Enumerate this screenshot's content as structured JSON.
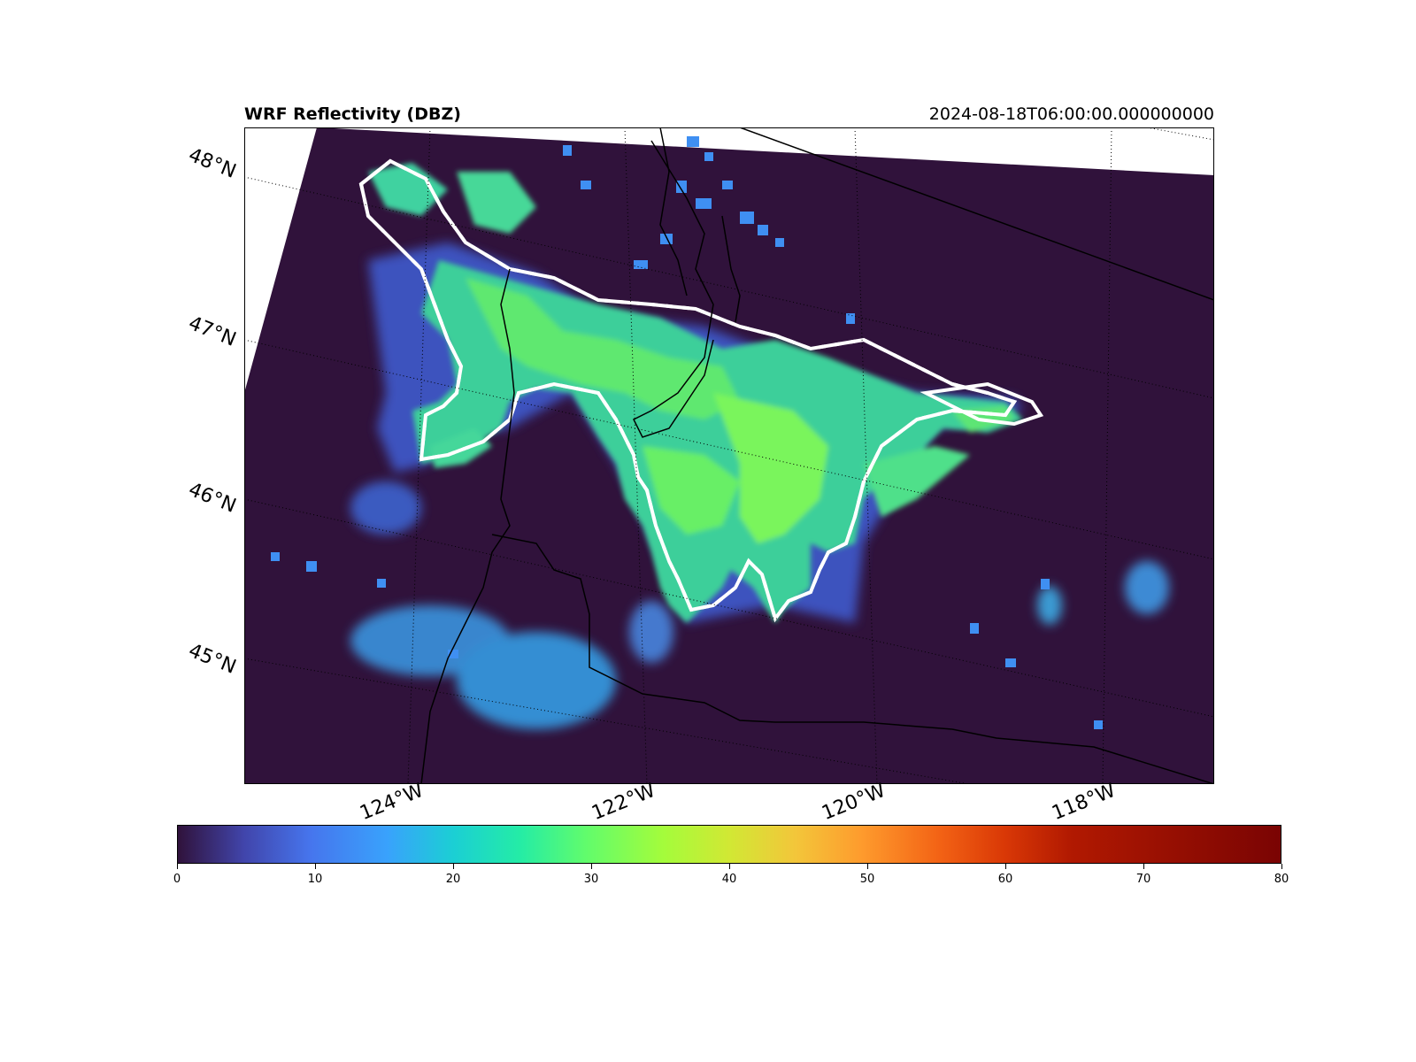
{
  "title": "WRF Reflectivity (DBZ)",
  "timestamp": "2024-08-18T06:00:00.000000000",
  "map": {
    "projection": "lambert-conformal",
    "background_color": "#30123b",
    "contour_color": "#ffffff",
    "contour_style": "dashed white/black",
    "lat_labels": [
      "48°N",
      "47°N",
      "46°N",
      "45°N"
    ],
    "lon_labels": [
      "124°W",
      "122°W",
      "120°W",
      "118°W"
    ]
  },
  "colorbar": {
    "colormap": "turbo",
    "min": 0,
    "max": 80,
    "ticks": [
      "0",
      "10",
      "20",
      "30",
      "40",
      "50",
      "60",
      "70",
      "80"
    ]
  }
}
